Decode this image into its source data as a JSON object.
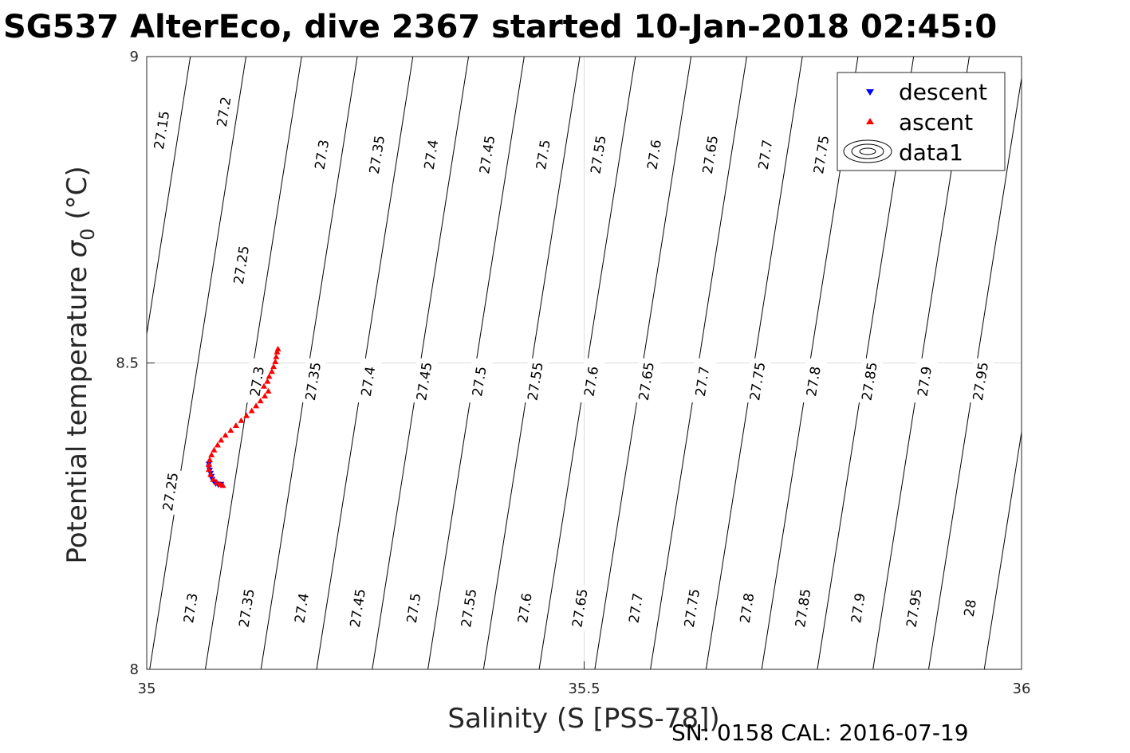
{
  "chart_data": {
    "type": "scatter",
    "title": "SG537 AlterEco, dive 2367 started 10-Jan-2018 02:45:0",
    "xlabel": "Salinity (S [PSS-78])",
    "ylabel_main": "Potential temperature ",
    "ylabel_symbol": "σ",
    "ylabel_sub": "0",
    "ylabel_unit": " (°C)",
    "xlim": [
      35,
      36
    ],
    "ylim": [
      8,
      9
    ],
    "xticks": [
      "35",
      "35.5",
      "36"
    ],
    "yticks": [
      "8",
      "8.5",
      "9"
    ],
    "grid": true,
    "legend_position": "top-right",
    "legend": [
      "descent",
      "ascent",
      "data1"
    ],
    "footer": "SN: 0158  CAL: 2016-07-19",
    "contour_labels": [
      {
        "text": "27.15",
        "s": 35.017,
        "t": 8.88
      },
      {
        "text": "27.2",
        "s": 35.088,
        "t": 8.91
      },
      {
        "text": "27.25",
        "s": 35.108,
        "t": 8.66
      },
      {
        "text": "27.3",
        "s": 35.2,
        "t": 8.84
      },
      {
        "text": "27.35",
        "s": 35.263,
        "t": 8.84
      },
      {
        "text": "27.4",
        "s": 35.325,
        "t": 8.84
      },
      {
        "text": "27.45",
        "s": 35.389,
        "t": 8.84
      },
      {
        "text": "27.5",
        "s": 35.453,
        "t": 8.84
      },
      {
        "text": "27.55",
        "s": 35.516,
        "t": 8.84
      },
      {
        "text": "27.6",
        "s": 35.58,
        "t": 8.84
      },
      {
        "text": "27.65",
        "s": 35.644,
        "t": 8.84
      },
      {
        "text": "27.7",
        "s": 35.707,
        "t": 8.84
      },
      {
        "text": "27.75",
        "s": 35.771,
        "t": 8.84
      },
      {
        "text": "27.3",
        "s": 35.126,
        "t": 8.47
      },
      {
        "text": "27.35",
        "s": 35.19,
        "t": 8.47
      },
      {
        "text": "27.4",
        "s": 35.253,
        "t": 8.47
      },
      {
        "text": "27.45",
        "s": 35.317,
        "t": 8.47
      },
      {
        "text": "27.5",
        "s": 35.38,
        "t": 8.47
      },
      {
        "text": "27.55",
        "s": 35.444,
        "t": 8.47
      },
      {
        "text": "27.6",
        "s": 35.508,
        "t": 8.47
      },
      {
        "text": "27.65",
        "s": 35.571,
        "t": 8.47
      },
      {
        "text": "27.7",
        "s": 35.635,
        "t": 8.47
      },
      {
        "text": "27.75",
        "s": 35.698,
        "t": 8.47
      },
      {
        "text": "27.8",
        "s": 35.762,
        "t": 8.47
      },
      {
        "text": "27.85",
        "s": 35.826,
        "t": 8.47
      },
      {
        "text": "27.9",
        "s": 35.889,
        "t": 8.47
      },
      {
        "text": "27.95",
        "s": 35.953,
        "t": 8.47
      },
      {
        "text": "27.25",
        "s": 35.027,
        "t": 8.29
      },
      {
        "text": "27.3",
        "s": 35.05,
        "t": 8.1
      },
      {
        "text": "27.35",
        "s": 35.114,
        "t": 8.1
      },
      {
        "text": "27.4",
        "s": 35.177,
        "t": 8.1
      },
      {
        "text": "27.45",
        "s": 35.241,
        "t": 8.1
      },
      {
        "text": "27.5",
        "s": 35.305,
        "t": 8.1
      },
      {
        "text": "27.55",
        "s": 35.368,
        "t": 8.1
      },
      {
        "text": "27.6",
        "s": 35.432,
        "t": 8.1
      },
      {
        "text": "27.65",
        "s": 35.495,
        "t": 8.1
      },
      {
        "text": "27.7",
        "s": 35.559,
        "t": 8.1
      },
      {
        "text": "27.75",
        "s": 35.623,
        "t": 8.1
      },
      {
        "text": "27.8",
        "s": 35.686,
        "t": 8.1
      },
      {
        "text": "27.85",
        "s": 35.75,
        "t": 8.1
      },
      {
        "text": "27.9",
        "s": 35.813,
        "t": 8.1
      },
      {
        "text": "27.95",
        "s": 35.877,
        "t": 8.1
      },
      {
        "text": "28",
        "s": 35.941,
        "t": 8.1
      }
    ],
    "series": [
      {
        "name": "descent",
        "marker": "triangle-down",
        "color": "#0000ff",
        "points": [
          [
            35.071,
            8.335
          ],
          [
            35.071,
            8.33
          ],
          [
            35.072,
            8.325
          ],
          [
            35.073,
            8.32
          ],
          [
            35.074,
            8.315
          ],
          [
            35.075,
            8.31
          ],
          [
            35.077,
            8.306
          ],
          [
            35.079,
            8.303
          ],
          [
            35.082,
            8.301
          ],
          [
            35.085,
            8.302
          ]
        ]
      },
      {
        "name": "ascent",
        "marker": "triangle-up",
        "color": "#ff0000",
        "points": [
          [
            35.087,
            8.3
          ],
          [
            35.084,
            8.302
          ],
          [
            35.08,
            8.305
          ],
          [
            35.076,
            8.31
          ],
          [
            35.073,
            8.318
          ],
          [
            35.071,
            8.326
          ],
          [
            35.071,
            8.334
          ],
          [
            35.072,
            8.342
          ],
          [
            35.074,
            8.35
          ],
          [
            35.077,
            8.358
          ],
          [
            35.081,
            8.366
          ],
          [
            35.085,
            8.374
          ],
          [
            35.09,
            8.382
          ],
          [
            35.096,
            8.39
          ],
          [
            35.102,
            8.398
          ],
          [
            35.108,
            8.406
          ],
          [
            35.114,
            8.414
          ],
          [
            35.12,
            8.422
          ],
          [
            35.125,
            8.43
          ],
          [
            35.13,
            8.438
          ],
          [
            35.135,
            8.446
          ],
          [
            35.139,
            8.454
          ],
          [
            35.134,
            8.462
          ],
          [
            35.138,
            8.47
          ],
          [
            35.14,
            8.478
          ],
          [
            35.143,
            8.486
          ],
          [
            35.145,
            8.494
          ],
          [
            35.147,
            8.502
          ],
          [
            35.148,
            8.51
          ],
          [
            35.149,
            8.518
          ],
          [
            35.15,
            8.523
          ]
        ]
      }
    ]
  }
}
